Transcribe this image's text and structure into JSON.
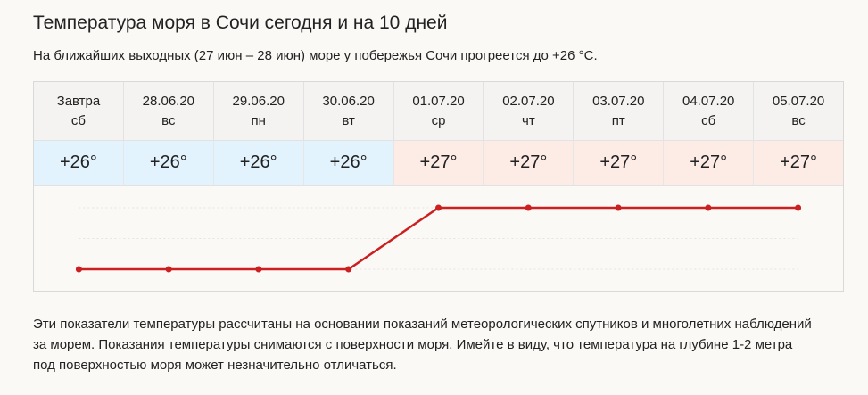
{
  "header": {
    "title": "Температура моря в Сочи сегодня и на 10 дней",
    "subtitle": "На ближайших выходных (27 июн – 28 июн) море у побережья Сочи прогреется до +26 °C."
  },
  "footnote": "Эти показатели температуры рассчитаны на основании показаний метеорологических спутников и многолетних наблюдений за морем. Показания температуры снимаются с поверхности моря. Имейте в виду, что температура на глубине 1-2 метра под поверхностью моря может незначительно отличаться.",
  "colors": {
    "cool_cell": "#e3f3fd",
    "warm_cell": "#fdebe6",
    "line": "#cc1f1f",
    "grid": "#e4e4e4"
  },
  "chart_data": {
    "type": "line",
    "title": "Температура моря в Сочи сегодня и на 10 дней",
    "categories": [
      "Завтра",
      "28.06.20",
      "29.06.20",
      "30.06.20",
      "01.07.20",
      "02.07.20",
      "03.07.20",
      "04.07.20",
      "05.07.20"
    ],
    "weekdays": [
      "сб",
      "вс",
      "пн",
      "вт",
      "ср",
      "чт",
      "пт",
      "сб",
      "вс"
    ],
    "labels": [
      "+26°",
      "+26°",
      "+26°",
      "+26°",
      "+27°",
      "+27°",
      "+27°",
      "+27°",
      "+27°"
    ],
    "series": [
      {
        "values": [
          26,
          26,
          26,
          26,
          27,
          27,
          27,
          27,
          27
        ]
      }
    ],
    "ylim": [
      26,
      27
    ],
    "grid": true
  }
}
